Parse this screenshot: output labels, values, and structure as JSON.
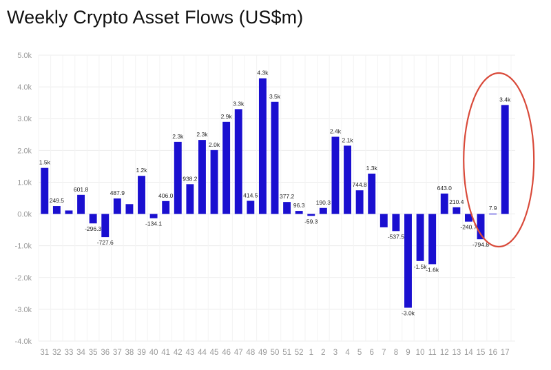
{
  "header": {
    "title": "Weekly Crypto Asset Flows (US$m)"
  },
  "colors": {
    "bar": "#1a0fd0",
    "grid": "#ececec",
    "highlight": "#d94a3a"
  },
  "chart_data": {
    "type": "bar",
    "title": "Weekly Crypto Asset Flows (US$m)",
    "xlabel": "",
    "ylabel": "",
    "ylim": [
      -4000,
      5000
    ],
    "yticks": [
      {
        "value": 5000,
        "label": "5.0k"
      },
      {
        "value": 4000,
        "label": "4.0k"
      },
      {
        "value": 3000,
        "label": "3.0k"
      },
      {
        "value": 2000,
        "label": "2.0k"
      },
      {
        "value": 1000,
        "label": "1.0k"
      },
      {
        "value": 0,
        "label": "0.0k"
      },
      {
        "value": -1000,
        "label": "-1.0k"
      },
      {
        "value": -2000,
        "label": "-2.0k"
      },
      {
        "value": -3000,
        "label": "-3.0k"
      },
      {
        "value": -4000,
        "label": "-4.0k"
      }
    ],
    "grid": true,
    "categories": [
      "31",
      "32",
      "33",
      "34",
      "35",
      "36",
      "37",
      "38",
      "39",
      "40",
      "41",
      "42",
      "43",
      "44",
      "45",
      "46",
      "47",
      "48",
      "49",
      "50",
      "51",
      "52",
      "1",
      "2",
      "3",
      "4",
      "5",
      "6",
      "7",
      "8",
      "9",
      "10",
      "11",
      "12",
      "13",
      "14",
      "15",
      "16",
      "17"
    ],
    "values": [
      1450,
      249.5,
      110,
      601.8,
      -296.3,
      -727.6,
      487.9,
      310,
      1200,
      -134.1,
      406.0,
      2270,
      938.2,
      2330,
      2010,
      2900,
      3300,
      414.5,
      4270,
      3530,
      377.2,
      96.3,
      -59.3,
      190.3,
      2430,
      2150,
      744.8,
      1270,
      -420,
      -537.5,
      -2950,
      -1480,
      -1580,
      643.0,
      210.4,
      -240.7,
      -794.8,
      7.9,
      3430
    ],
    "labels": [
      "1.5k",
      "249.5",
      "",
      "601.8",
      "-296.3",
      "-727.6",
      "487.9",
      "",
      "1.2k",
      "-134.1",
      "406.0",
      "2.3k",
      "938.2",
      "2.3k",
      "2.0k",
      "2.9k",
      "3.3k",
      "414.5",
      "4.3k",
      "3.5k",
      "377.2",
      "96.3",
      "-59.3",
      "190.3",
      "2.4k",
      "2.1k",
      "744.8",
      "1.3k",
      "",
      "-537.5",
      "-3.0k",
      "-1.5k",
      "-1.6k",
      "643.0",
      "210.4",
      "-240.7",
      "-794.8",
      "7.9",
      "3.4k"
    ],
    "annotations": [
      {
        "type": "ellipse",
        "target_category": "17",
        "color": "#d94a3a"
      }
    ]
  }
}
